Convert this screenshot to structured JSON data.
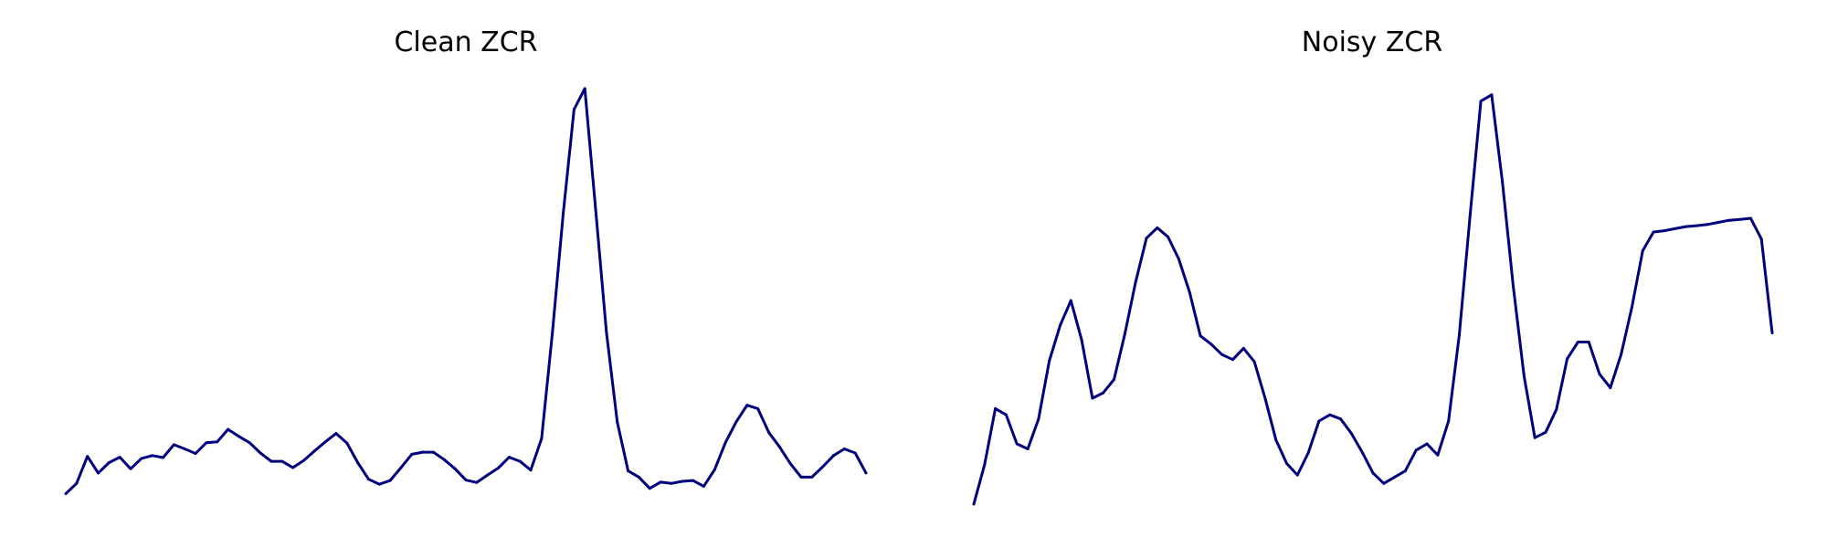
{
  "chart_data": [
    {
      "type": "line",
      "title": "Clean ZCR",
      "axes_visible": false,
      "grid": false,
      "color": "#00007f",
      "values": [
        0.025,
        0.05,
        0.115,
        0.075,
        0.1,
        0.113,
        0.085,
        0.11,
        0.117,
        0.112,
        0.143,
        0.133,
        0.122,
        0.148,
        0.15,
        0.18,
        0.163,
        0.148,
        0.123,
        0.103,
        0.103,
        0.088,
        0.105,
        0.128,
        0.15,
        0.17,
        0.147,
        0.1,
        0.06,
        0.048,
        0.057,
        0.088,
        0.12,
        0.125,
        0.125,
        0.107,
        0.085,
        0.058,
        0.052,
        0.07,
        0.087,
        0.113,
        0.103,
        0.082,
        0.158,
        0.412,
        0.698,
        0.95,
        1.0,
        0.708,
        0.413,
        0.198,
        0.08,
        0.065,
        0.038,
        0.053,
        0.05,
        0.055,
        0.057,
        0.043,
        0.083,
        0.148,
        0.198,
        0.238,
        0.23,
        0.173,
        0.138,
        0.098,
        0.065,
        0.065,
        0.09,
        0.117,
        0.133,
        0.123,
        0.075
      ]
    },
    {
      "type": "line",
      "title": "Noisy ZCR",
      "axes_visible": false,
      "grid": false,
      "color": "#00007f",
      "values": [
        0.0,
        0.095,
        0.23,
        0.215,
        0.145,
        0.133,
        0.205,
        0.345,
        0.43,
        0.49,
        0.395,
        0.255,
        0.268,
        0.3,
        0.41,
        0.535,
        0.64,
        0.665,
        0.643,
        0.59,
        0.51,
        0.405,
        0.385,
        0.36,
        0.348,
        0.375,
        0.343,
        0.255,
        0.155,
        0.098,
        0.07,
        0.123,
        0.2,
        0.215,
        0.205,
        0.17,
        0.125,
        0.075,
        0.05,
        0.065,
        0.08,
        0.13,
        0.145,
        0.118,
        0.2,
        0.408,
        0.695,
        0.97,
        0.985,
        0.775,
        0.525,
        0.308,
        0.16,
        0.173,
        0.228,
        0.35,
        0.39,
        0.39,
        0.313,
        0.28,
        0.36,
        0.475,
        0.61,
        0.655,
        0.658,
        0.663,
        0.668,
        0.67,
        0.673,
        0.678,
        0.683,
        0.685,
        0.688,
        0.638,
        0.412
      ]
    }
  ]
}
